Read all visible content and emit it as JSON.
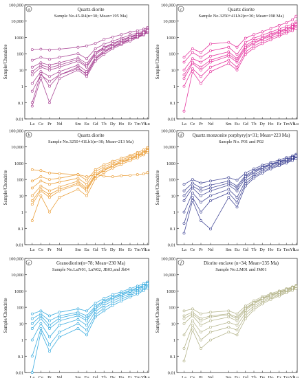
{
  "chart_data": [
    {
      "type": "line",
      "panel_letter": "a",
      "title": "Quartz diorite",
      "subtitle": "Sample No.45-R4(n=30; Mean=195 Ma)",
      "ylabel": "Sample/Chondrite",
      "yscale": "log",
      "ylim": [
        0.01,
        100000
      ],
      "color": "#9c2a86",
      "categories": [
        "La",
        "Ce",
        "Pr",
        "Nd",
        "Sm",
        "Eu",
        "Gd",
        "Tb",
        "Dy",
        "Ho",
        "Er",
        "Tm",
        "Yb",
        "Lu"
      ],
      "series": [
        {
          "values": [
            180,
            190,
            170,
            190,
            250,
            300,
            430,
            750,
            1050,
            1500,
            2100,
            2600,
            3200,
            4000
          ]
        },
        {
          "values": [
            40,
            60,
            45,
            60,
            100,
            50,
            200,
            380,
            600,
            900,
            1400,
            1900,
            2500,
            3200
          ]
        },
        {
          "values": [
            15,
            28,
            20,
            28,
            55,
            25,
            120,
            250,
            430,
            700,
            1100,
            1600,
            2200,
            2900
          ]
        },
        {
          "values": [
            5,
            15,
            10,
            15,
            35,
            15,
            90,
            200,
            360,
            600,
            950,
            1400,
            1900,
            2500
          ]
        },
        {
          "values": [
            1.5,
            8,
            4,
            8,
            20,
            8,
            60,
            150,
            290,
            500,
            820,
            1200,
            1700,
            2300
          ]
        },
        {
          "values": [
            0.5,
            5,
            2,
            5,
            15,
            5,
            45,
            120,
            240,
            420,
            700,
            1050,
            1500,
            2100
          ]
        },
        {
          "values": [
            0.06,
            3,
            0.1,
            3,
            10,
            4,
            35,
            90,
            200,
            360,
            600,
            950,
            1400,
            2000
          ]
        },
        {
          "values": [
            0.1,
            6,
            1,
            5,
            12,
            6,
            50,
            130,
            260,
            450,
            750,
            1100,
            1600,
            2200
          ]
        },
        {
          "values": [
            8,
            20,
            14,
            20,
            45,
            18,
            110,
            230,
            420,
            680,
            1050,
            1500,
            2000,
            2700
          ]
        }
      ]
    },
    {
      "type": "line",
      "panel_letter": "c",
      "title": "Quartz diorite",
      "subtitle": "Sample No.3250+41Lb2(n=30; Mean=198 Ma)",
      "ylabel": "Sample/Chondrite",
      "yscale": "log",
      "ylim": [
        0.01,
        100000
      ],
      "color": "#e0158f",
      "categories": [
        "La",
        "Ce",
        "Pr",
        "Nd",
        "Sm",
        "Eu",
        "Gd",
        "Tb",
        "Dy",
        "Ho",
        "Er",
        "Tm",
        "Yb",
        "Lu"
      ],
      "series": [
        {
          "values": [
            60,
            200,
            120,
            400,
            500,
            250,
            900,
            1500,
            2200,
            3500,
            5500,
            8000,
            12000,
            20000
          ]
        },
        {
          "values": [
            30,
            120,
            60,
            150,
            250,
            90,
            500,
            900,
            1400,
            2100,
            3300,
            4800,
            6500,
            9000
          ]
        },
        {
          "values": [
            10,
            50,
            30,
            70,
            130,
            50,
            320,
            650,
            1000,
            1600,
            2500,
            3600,
            5000,
            7000
          ]
        },
        {
          "values": [
            3,
            25,
            10,
            30,
            70,
            30,
            200,
            430,
            750,
            1200,
            1900,
            2800,
            3900,
            5500
          ]
        },
        {
          "values": [
            1,
            12,
            4,
            15,
            40,
            15,
            130,
            300,
            550,
            900,
            1500,
            2200,
            3100,
            4300
          ]
        },
        {
          "values": [
            0.03,
            8,
            1.5,
            8,
            25,
            10,
            90,
            220,
            420,
            700,
            1200,
            1800,
            2600,
            3600
          ]
        },
        {
          "values": [
            5,
            30,
            15,
            40,
            90,
            40,
            250,
            500,
            850,
            1400,
            2200,
            3200,
            4500,
            6300
          ]
        }
      ]
    },
    {
      "type": "line",
      "panel_letter": "b",
      "title": "Quartz diorite",
      "subtitle": "Sample No.3250+41Lb1(n=30; Mean=213 Ma)",
      "ylabel": "Sample/Chondrite",
      "yscale": "log",
      "ylim": [
        0.01,
        100000
      ],
      "color": "#e8901c",
      "categories": [
        "La",
        "Ce",
        "Pr",
        "Nd",
        "Sm",
        "Eu",
        "Gd",
        "Tb",
        "Dy",
        "Ho",
        "Er",
        "Tm",
        "Yb",
        "Lu"
      ],
      "series": [
        {
          "values": [
            400,
            350,
            250,
            230,
            200,
            150,
            200,
            160,
            150,
            170,
            180,
            200,
            220,
            260
          ]
        },
        {
          "values": [
            80,
            150,
            100,
            120,
            200,
            90,
            400,
            800,
            1300,
            2000,
            3000,
            4500,
            6500,
            9000
          ]
        },
        {
          "values": [
            30,
            80,
            50,
            70,
            120,
            50,
            300,
            600,
            1000,
            1600,
            2500,
            3700,
            5300,
            7500
          ]
        },
        {
          "values": [
            10,
            40,
            20,
            35,
            80,
            30,
            220,
            450,
            800,
            1300,
            2100,
            3100,
            4500,
            6500
          ]
        },
        {
          "values": [
            3,
            20,
            8,
            20,
            50,
            20,
            160,
            350,
            650,
            1050,
            1700,
            2600,
            3800,
            5500
          ]
        },
        {
          "values": [
            0.3,
            10,
            1,
            8,
            25,
            10,
            110,
            260,
            500,
            850,
            1400,
            2100,
            3200,
            4700
          ]
        },
        {
          "values": [
            5,
            25,
            12,
            25,
            60,
            25,
            180,
            380,
            700,
            1150,
            1850,
            2800,
            4100,
            6000
          ]
        }
      ]
    },
    {
      "type": "line",
      "panel_letter": "d",
      "title": "Quartz monzonite porphyry(n=31; Mean=223 Ma)",
      "subtitle": "Sample No. P01 and P02",
      "ylabel": "Sample/Chondrite",
      "yscale": "log",
      "ylim": [
        0.01,
        100000
      ],
      "color": "#262c86",
      "categories": [
        "La",
        "Ce",
        "Pr",
        "Nd",
        "Sm",
        "Eu",
        "Gd",
        "Tb",
        "Dy",
        "Ho",
        "Er",
        "Tm",
        "Yb",
        "Lu"
      ],
      "series": [
        {
          "values": [
            50,
            100,
            60,
            80,
            130,
            90,
            250,
            450,
            750,
            1100,
            1600,
            2200,
            2800,
            3500
          ]
        },
        {
          "values": [
            20,
            60,
            30,
            45,
            80,
            40,
            180,
            350,
            600,
            900,
            1300,
            1800,
            2400,
            3000
          ]
        },
        {
          "values": [
            5,
            30,
            10,
            20,
            45,
            20,
            120,
            260,
            480,
            750,
            1100,
            1500,
            2000,
            2600
          ]
        },
        {
          "values": [
            1,
            15,
            4,
            10,
            25,
            8,
            80,
            190,
            380,
            620,
            950,
            1300,
            1800,
            2300
          ]
        },
        {
          "values": [
            0.2,
            8,
            1,
            5,
            15,
            4,
            55,
            150,
            300,
            520,
            800,
            1150,
            1600,
            2100
          ]
        },
        {
          "values": [
            0.05,
            5,
            0.3,
            0.09,
            8,
            2,
            40,
            120,
            250,
            450,
            700,
            1000,
            1450,
            1900
          ]
        },
        {
          "values": [
            10,
            40,
            20,
            30,
            60,
            30,
            150,
            300,
            540,
            820,
            1200,
            1650,
            2200,
            2800
          ]
        }
      ]
    },
    {
      "type": "line",
      "panel_letter": "e",
      "title": "Granodiorite(n=78; Mean=230 Ma)",
      "subtitle": "Sample No.LuN01, LuN02, JB03,and Jb04",
      "ylabel": "Sample/Chondrite",
      "yscale": "log",
      "ylim": [
        0.01,
        100000
      ],
      "color": "#1a9fdb",
      "categories": [
        "La",
        "Ce",
        "Pr",
        "Nd",
        "Sm",
        "Eu",
        "Gd",
        "Tb",
        "Dy",
        "Ho",
        "Er",
        "Tm",
        "Yb",
        "Lu"
      ],
      "series": [
        {
          "values": [
            40,
            60,
            30,
            50,
            80,
            60,
            180,
            350,
            600,
            900,
            1400,
            2000,
            2800,
            3500
          ]
        },
        {
          "values": [
            20,
            40,
            15,
            30,
            50,
            30,
            120,
            260,
            450,
            700,
            1100,
            1600,
            2300,
            3000
          ]
        },
        {
          "values": [
            5,
            20,
            5,
            15,
            30,
            15,
            80,
            180,
            330,
            540,
            850,
            1250,
            1850,
            2500
          ]
        },
        {
          "values": [
            1,
            10,
            1.5,
            8,
            18,
            8,
            55,
            130,
            250,
            420,
            680,
            1000,
            1500,
            2100
          ]
        },
        {
          "values": [
            0.1,
            5,
            0.5,
            3,
            10,
            4,
            35,
            90,
            180,
            320,
            540,
            800,
            1250,
            1800
          ]
        },
        {
          "values": [
            0.01,
            3,
            0.2,
            1.5,
            5,
            2,
            25,
            60,
            130,
            240,
            420,
            650,
            1050,
            1500
          ]
        },
        {
          "values": [
            10,
            30,
            8,
            22,
            40,
            20,
            100,
            220,
            390,
            620,
            980,
            1420,
            2050,
            2800
          ]
        }
      ]
    },
    {
      "type": "line",
      "panel_letter": "f",
      "title": "Diorite enclave (n=34; Mean=235 Ma)",
      "subtitle": "Sample No.LM01 and JM01",
      "ylabel": "Sample/Chondrite",
      "yscale": "log",
      "ylim": [
        0.01,
        100000
      ],
      "color": "#a8a878",
      "categories": [
        "La",
        "Ce",
        "Pr",
        "Nd",
        "Sm",
        "Eu",
        "Gd",
        "Tb",
        "Dy",
        "Ho",
        "Er",
        "Tm",
        "Yb",
        "Lu"
      ],
      "series": [
        {
          "values": [
            60,
            80,
            40,
            50,
            60,
            40,
            120,
            250,
            450,
            700,
            1000,
            1400,
            1800,
            2200
          ]
        },
        {
          "values": [
            30,
            50,
            20,
            30,
            40,
            25,
            90,
            200,
            380,
            600,
            880,
            1250,
            1650,
            2000
          ]
        },
        {
          "values": [
            10,
            30,
            8,
            15,
            25,
            15,
            65,
            160,
            310,
            510,
            760,
            1100,
            1500,
            1850
          ]
        },
        {
          "values": [
            2,
            15,
            3,
            6,
            12,
            8,
            45,
            120,
            250,
            430,
            660,
            980,
            1350,
            1700
          ]
        },
        {
          "values": [
            0.3,
            8,
            1,
            3,
            6,
            4,
            30,
            90,
            200,
            360,
            570,
            870,
            1200,
            1550
          ]
        },
        {
          "values": [
            0.05,
            4,
            0.3,
            1,
            3,
            2,
            20,
            70,
            160,
            300,
            490,
            770,
            1080,
            1400
          ]
        },
        {
          "values": [
            20,
            40,
            15,
            25,
            35,
            20,
            80,
            180,
            350,
            560,
            830,
            1180,
            1580,
            1950
          ]
        }
      ]
    }
  ]
}
